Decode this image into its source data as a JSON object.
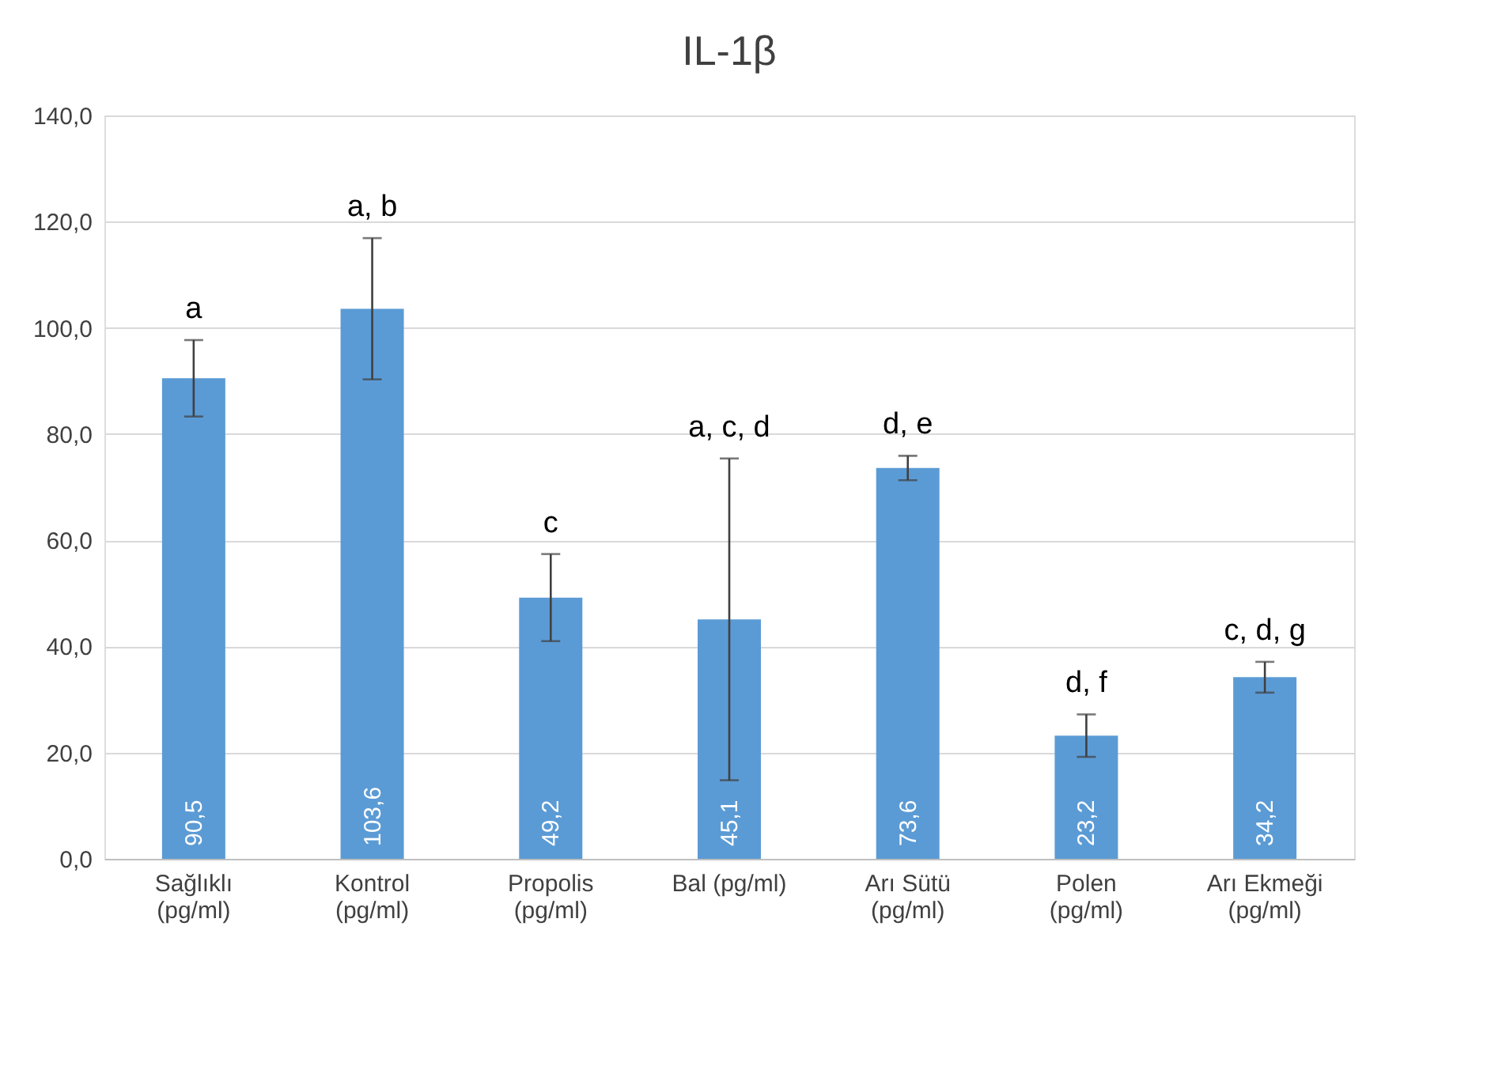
{
  "chart_data": {
    "type": "bar",
    "title": "IL-1β",
    "categories": [
      "Sağlıklı\n(pg/ml)",
      "Kontrol\n(pg/ml)",
      "Propolis\n(pg/ml)",
      "Bal (pg/ml)",
      "Arı Sütü\n(pg/ml)",
      "Polen\n(pg/ml)",
      "Arı Ekmeği\n(pg/ml)"
    ],
    "values": [
      90.5,
      103.6,
      49.2,
      45.1,
      73.6,
      23.2,
      34.2
    ],
    "value_labels": [
      "90,5",
      "103,6",
      "49,2",
      "45,1",
      "73,6",
      "23,2",
      "34,2"
    ],
    "errors": [
      7.2,
      13.3,
      8.2,
      30.3,
      2.3,
      4.0,
      2.9
    ],
    "color": "#5b9bd5",
    "ylim": [
      0,
      140
    ],
    "yticks": [
      {
        "value": 0,
        "label": "0,0"
      },
      {
        "value": 20,
        "label": "20,0"
      },
      {
        "value": 40,
        "label": "40,0"
      },
      {
        "value": 60,
        "label": "60,0"
      },
      {
        "value": 80,
        "label": "80,0"
      },
      {
        "value": 100,
        "label": "100,0"
      },
      {
        "value": 120,
        "label": "120,0"
      },
      {
        "value": 140,
        "label": "140,0"
      }
    ],
    "grid": "y",
    "annotations": [
      {
        "text": "a",
        "x": "Sağlıklı\n(pg/ml)",
        "y": 97.7
      },
      {
        "text": "a, b",
        "x": "Kontrol\n(pg/ml)",
        "y": 116.9
      },
      {
        "text": "c",
        "x": "Propolis\n(pg/ml)",
        "y": 57.4
      },
      {
        "text": "a, c, d",
        "x": "Bal (pg/ml)",
        "y": 75.4
      },
      {
        "text": "d, e",
        "x": "Arı Sütü\n(pg/ml)",
        "y": 75.9
      },
      {
        "text": "d, f",
        "x": "Polen\n(pg/ml)",
        "y": 27.2
      },
      {
        "text": "c, d, g",
        "x": "Arı Ekmeği\n(pg/ml)",
        "y": 37.1
      }
    ]
  }
}
